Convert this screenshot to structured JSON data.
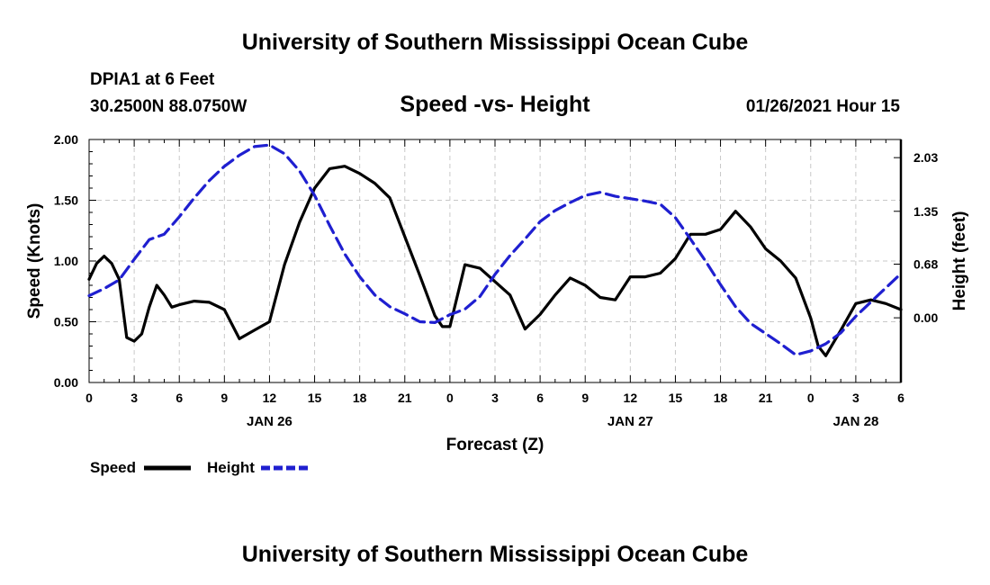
{
  "page": {
    "header_title": "University of Southern Mississippi Ocean Cube",
    "footer_title": "University of Southern Mississippi Ocean Cube",
    "station": "DPIA1 at 6 Feet",
    "coordinates": "30.2500N 88.0750W",
    "plot_title": "Speed -vs- Height",
    "issued": "01/26/2021 Hour 15"
  },
  "chart_data": {
    "type": "line",
    "title": "Speed -vs- Height",
    "xlabel": "Forecast (Z)",
    "ylabel": "Speed (Knots)",
    "y2label": "Height (feet)",
    "xlim": [
      0,
      54
    ],
    "ylim": [
      0,
      2.0
    ],
    "y2lim": [
      -0.82,
      2.26
    ],
    "grid": true,
    "legend_position": "bottom-left",
    "x_ticks": [
      0,
      3,
      6,
      9,
      12,
      15,
      18,
      21,
      24,
      27,
      30,
      33,
      36,
      39,
      42,
      45,
      48,
      51,
      54
    ],
    "x_tick_labels": [
      "0",
      "3",
      "6",
      "9",
      "12",
      "15",
      "18",
      "21",
      "0",
      "3",
      "6",
      "9",
      "12",
      "15",
      "18",
      "21",
      "0",
      "3",
      "6"
    ],
    "date_labels": [
      {
        "x": 12,
        "label": "JAN 26"
      },
      {
        "x": 36,
        "label": "JAN 27"
      },
      {
        "x": 51,
        "label": "JAN 28"
      }
    ],
    "y_ticks": [
      0,
      0.5,
      1.0,
      1.5,
      2.0
    ],
    "y_tick_labels": [
      "0.00",
      "0.50",
      "1.00",
      "1.50",
      "2.00"
    ],
    "y2_ticks": [
      0,
      0.68,
      1.35,
      2.03
    ],
    "y2_tick_labels": [
      "0.00",
      "0.68",
      "1.35",
      "2.03"
    ],
    "series": [
      {
        "name": "Speed",
        "axis": "left",
        "color": "#000000",
        "dash": "solid",
        "x": [
          0,
          0.5,
          1,
          1.5,
          2,
          2.5,
          3,
          3.5,
          4,
          4.5,
          5,
          5.5,
          6,
          7,
          8,
          9,
          10,
          11,
          12,
          13,
          14,
          15,
          16,
          17,
          18,
          19,
          20,
          21,
          22,
          23,
          23.5,
          24,
          25,
          26,
          27,
          28,
          29,
          30,
          31,
          32,
          33,
          34,
          35,
          36,
          37,
          38,
          39,
          40,
          41,
          42,
          43,
          44,
          45,
          46,
          47,
          48,
          48.5,
          49,
          50,
          51,
          52,
          53,
          54
        ],
        "values": [
          0.85,
          0.98,
          1.04,
          0.98,
          0.85,
          0.37,
          0.34,
          0.4,
          0.62,
          0.8,
          0.72,
          0.62,
          0.64,
          0.67,
          0.66,
          0.6,
          0.36,
          0.43,
          0.5,
          0.97,
          1.32,
          1.6,
          1.76,
          1.78,
          1.72,
          1.64,
          1.52,
          1.2,
          0.88,
          0.55,
          0.46,
          0.46,
          0.97,
          0.94,
          0.83,
          0.72,
          0.44,
          0.56,
          0.72,
          0.86,
          0.8,
          0.7,
          0.68,
          0.87,
          0.87,
          0.9,
          1.02,
          1.22,
          1.22,
          1.26,
          1.41,
          1.28,
          1.1,
          1.0,
          0.86,
          0.53,
          0.3,
          0.22,
          0.43,
          0.65,
          0.68,
          0.65,
          0.6
        ]
      },
      {
        "name": "Height",
        "axis": "right",
        "color": "#1f1fd0",
        "dash": "dashed",
        "x": [
          0,
          1,
          2,
          3,
          4,
          5,
          6,
          7,
          8,
          9,
          10,
          11,
          12,
          13,
          14,
          15,
          16,
          17,
          18,
          19,
          20,
          21,
          22,
          23,
          24,
          25,
          26,
          27,
          28,
          29,
          30,
          31,
          32,
          33,
          34,
          35,
          36,
          37,
          38,
          39,
          40,
          41,
          42,
          43,
          44,
          45,
          46,
          47,
          48,
          49,
          50,
          51,
          52,
          53,
          54
        ],
        "values": [
          0.28,
          0.37,
          0.48,
          0.74,
          0.99,
          1.06,
          1.28,
          1.52,
          1.74,
          1.92,
          2.06,
          2.17,
          2.19,
          2.08,
          1.86,
          1.55,
          1.17,
          0.81,
          0.52,
          0.29,
          0.14,
          0.05,
          -0.05,
          -0.06,
          0.04,
          0.11,
          0.27,
          0.55,
          0.79,
          1.0,
          1.22,
          1.36,
          1.46,
          1.55,
          1.59,
          1.54,
          1.51,
          1.48,
          1.44,
          1.27,
          1.0,
          0.72,
          0.42,
          0.14,
          -0.07,
          -0.2,
          -0.33,
          -0.47,
          -0.42,
          -0.33,
          -0.19,
          0.02,
          0.2,
          0.38,
          0.56
        ]
      }
    ],
    "legend": [
      {
        "label": "Speed",
        "color": "#000000",
        "dash": "solid"
      },
      {
        "label": "Height",
        "color": "#1f1fd0",
        "dash": "dashed"
      }
    ]
  }
}
